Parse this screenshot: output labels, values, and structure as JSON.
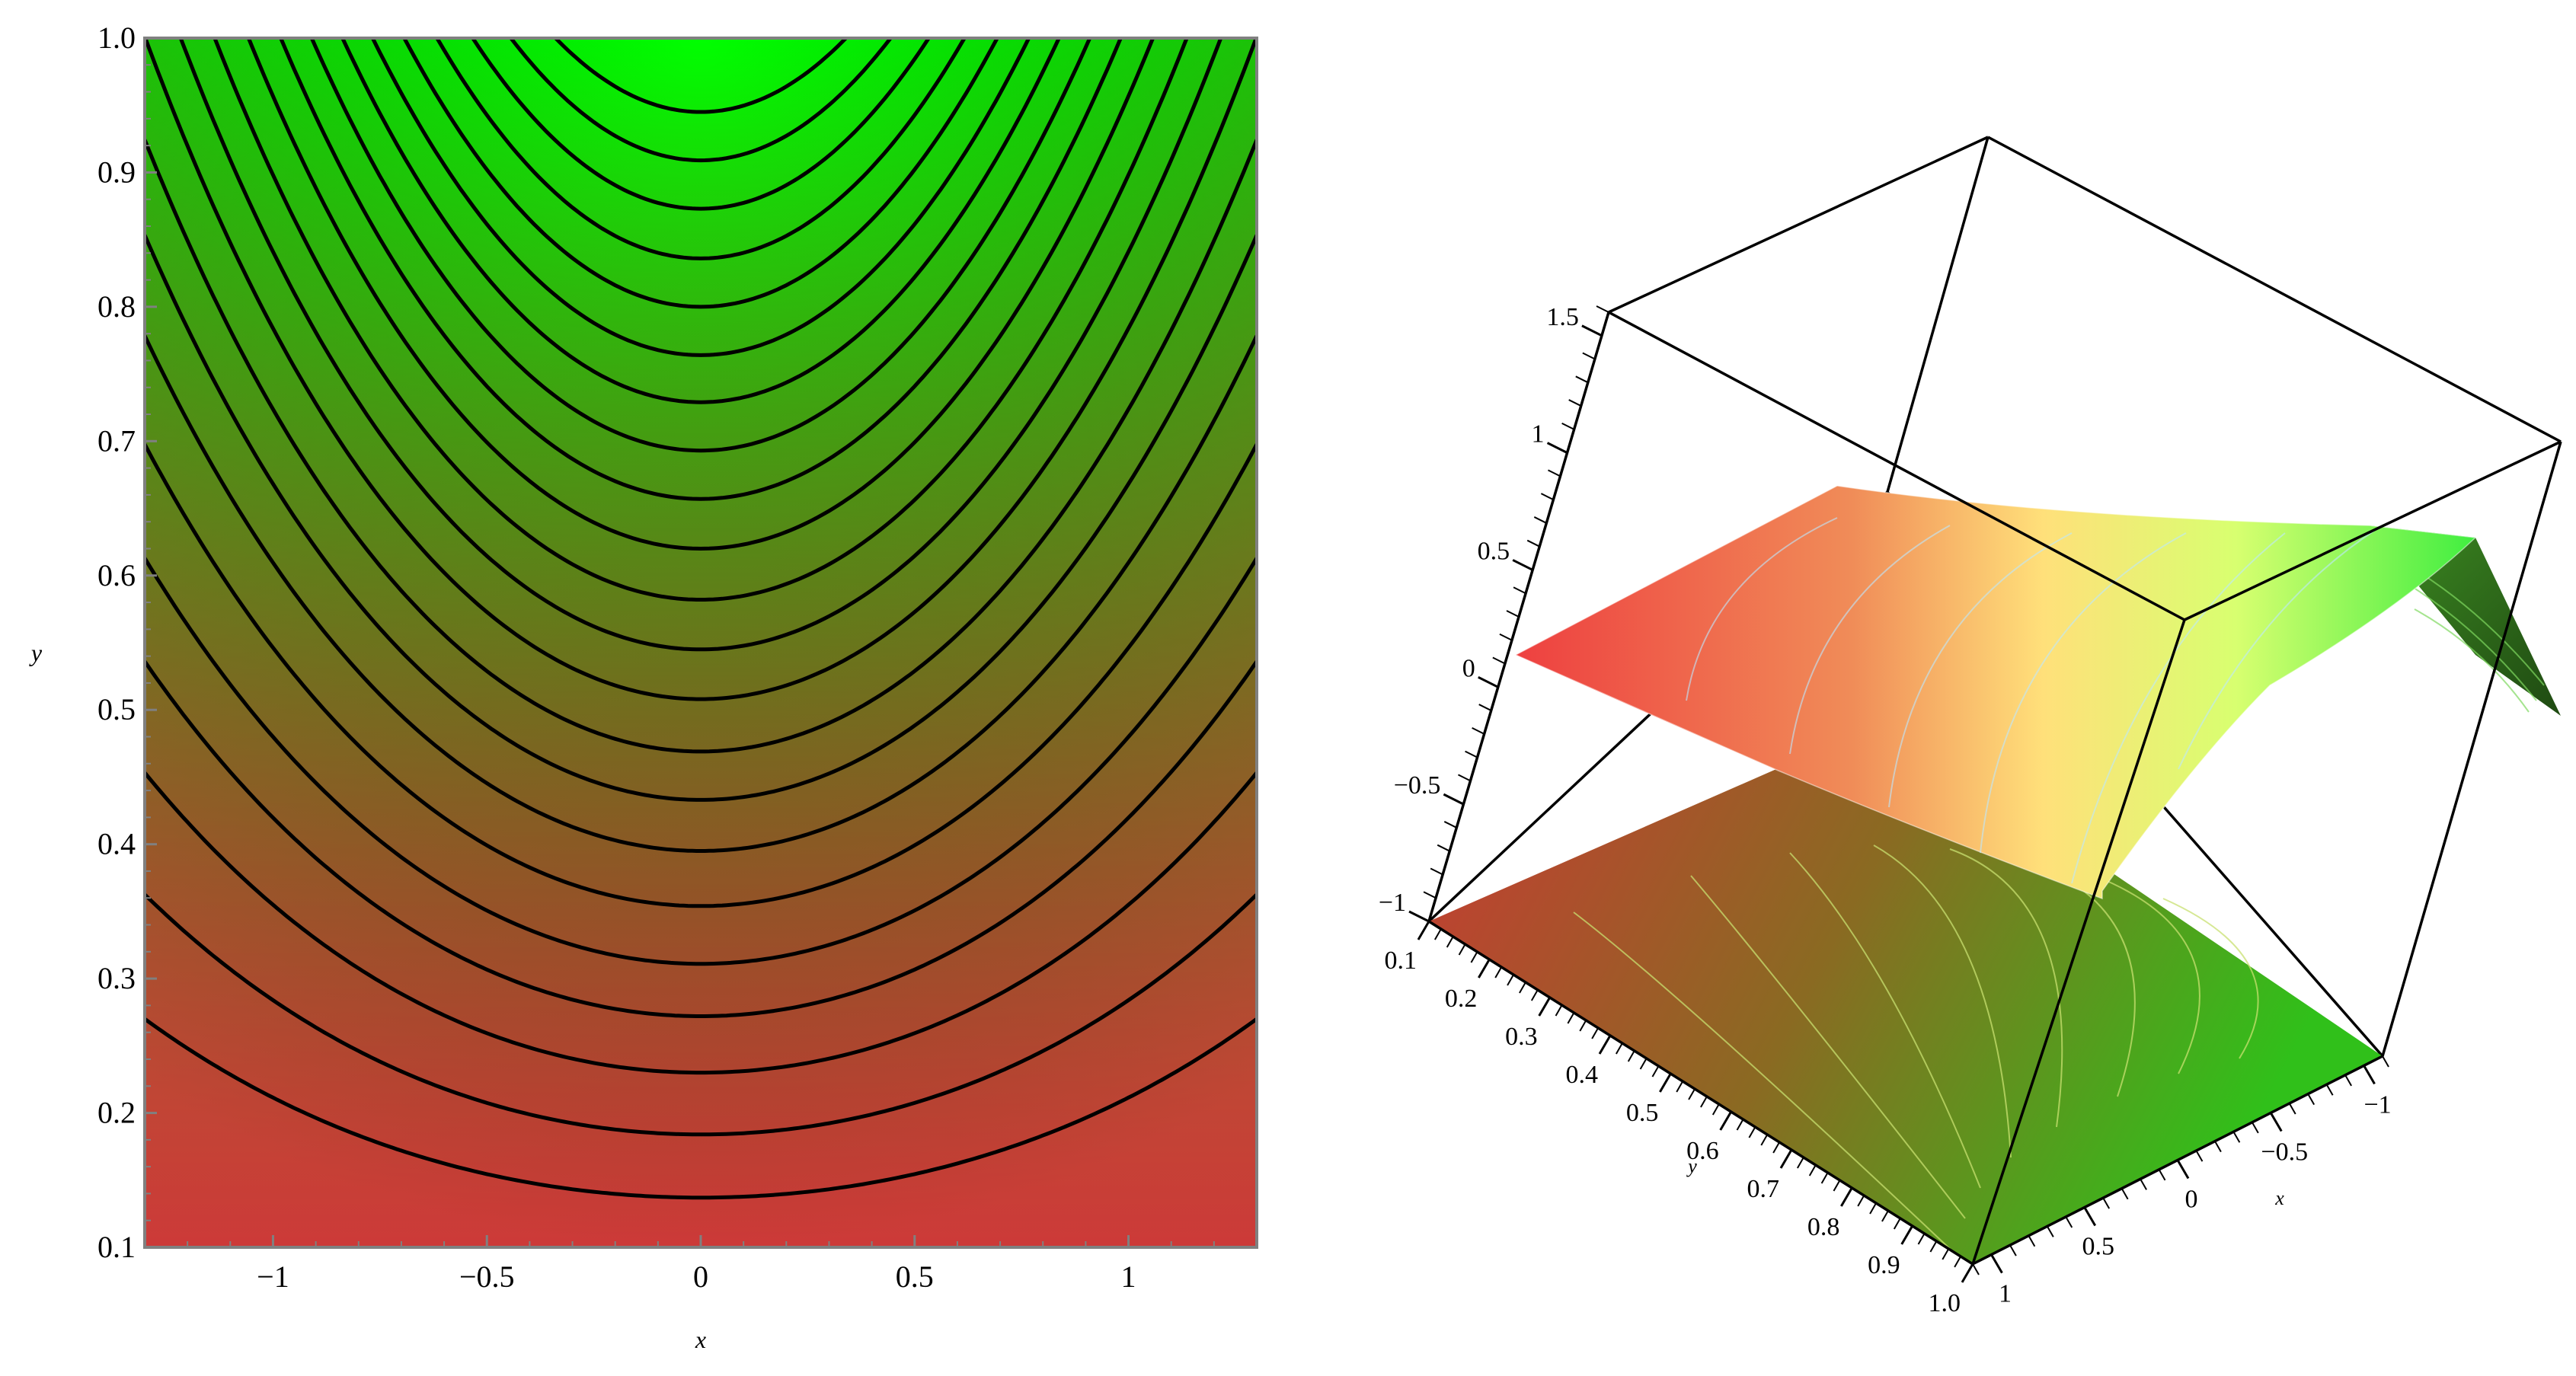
{
  "colors": {
    "low": "#d22f33",
    "high": "#00ff00",
    "contour": "#000000",
    "frame": "#808080"
  },
  "chart_data": [
    {
      "type": "contour",
      "title": "",
      "xlabel": "x",
      "ylabel": "y",
      "xlim": [
        -1.3,
        1.3
      ],
      "ylim": [
        0.1,
        1.0
      ],
      "xticks": [
        -1,
        -0.5,
        0,
        0.5,
        1
      ],
      "yticks": [
        0.1,
        0.2,
        0.3,
        0.4,
        0.5,
        0.6,
        0.7,
        0.8,
        0.9,
        1.0
      ],
      "xtick_labels": [
        "−1",
        "−0.5",
        "0",
        "0.5",
        "1"
      ],
      "ytick_labels": [
        "0.1",
        "0.2",
        "0.3",
        "0.4",
        "0.5",
        "0.6",
        "0.7",
        "0.8",
        "0.9",
        "1.0"
      ],
      "contour_vertex_y": [
        0.137,
        0.184,
        0.23,
        0.272,
        0.311,
        0.354,
        0.395,
        0.433,
        0.469,
        0.508,
        0.545,
        0.582,
        0.62,
        0.657,
        0.693,
        0.729,
        0.764,
        0.8,
        0.836,
        0.873,
        0.909,
        0.945
      ],
      "contour_color_scale": "red (low) to green (high)",
      "grid": false
    },
    {
      "type": "surface3d",
      "title": "",
      "xlabel": "x",
      "ylabel": "y",
      "zlim": [
        -1,
        1.6
      ],
      "xticks": [
        -1,
        -0.5,
        0,
        0.5,
        1
      ],
      "yticks": [
        0.1,
        0.2,
        0.3,
        0.4,
        0.5,
        0.6,
        0.7,
        0.8,
        0.9,
        1.0
      ],
      "zticks": [
        -1,
        -0.5,
        0,
        0.5,
        1,
        1.5
      ],
      "xtick_labels": [
        "−1",
        "−0.5",
        "0",
        "0.5",
        "1"
      ],
      "ytick_labels": [
        "0.1",
        "0.2",
        "0.3",
        "0.4",
        "0.5",
        "0.6",
        "0.7",
        "0.8",
        "0.9",
        "1.0"
      ],
      "ztick_labels": [
        "−1",
        "−0.5",
        "0",
        "0.5",
        "1",
        "1.5"
      ],
      "surface_color_scale": "red (low) to yellow to green (high)",
      "projected_contours_on_floor": true
    }
  ]
}
